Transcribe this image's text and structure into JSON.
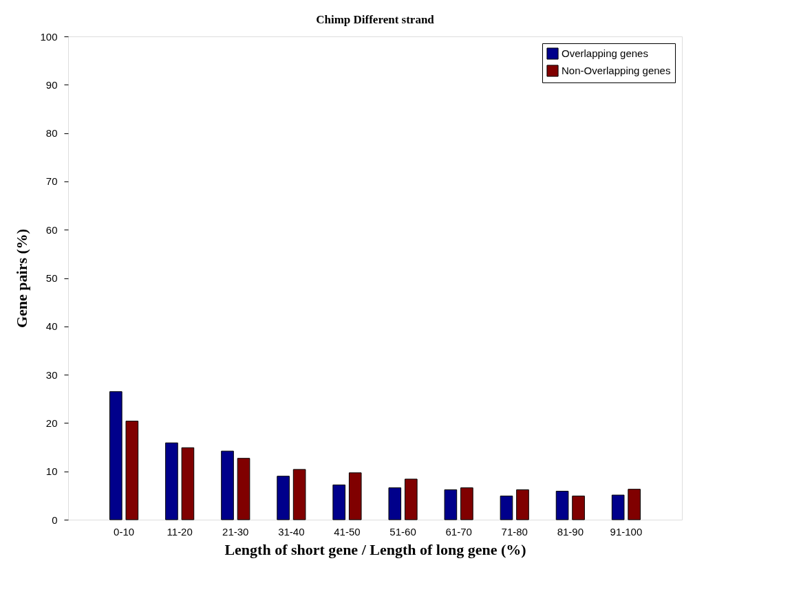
{
  "chart_data": {
    "type": "bar",
    "title": "Chimp Different strand",
    "xlabel": "Length of short gene / Length of long gene (%)",
    "ylabel": "Gene pairs (%)",
    "categories": [
      "0-10",
      "11-20",
      "21-30",
      "31-40",
      "41-50",
      "51-60",
      "61-70",
      "71-80",
      "81-90",
      "91-100"
    ],
    "series": [
      {
        "name": "Overlapping genes",
        "color": "#00008b",
        "values": [
          26.5,
          15.9,
          14.2,
          9.0,
          7.2,
          6.6,
          6.2,
          4.9,
          5.9,
          5.1
        ]
      },
      {
        "name": "Non-Overlapping genes",
        "color": "#800000",
        "values": [
          20.4,
          14.9,
          12.7,
          10.4,
          9.7,
          8.4,
          6.6,
          6.2,
          4.9,
          6.3
        ]
      }
    ],
    "ylim": [
      0,
      100
    ],
    "yticks": [
      0,
      10,
      20,
      30,
      40,
      50,
      60,
      70,
      80,
      90,
      100
    ],
    "grid": false,
    "legend": "top right"
  }
}
